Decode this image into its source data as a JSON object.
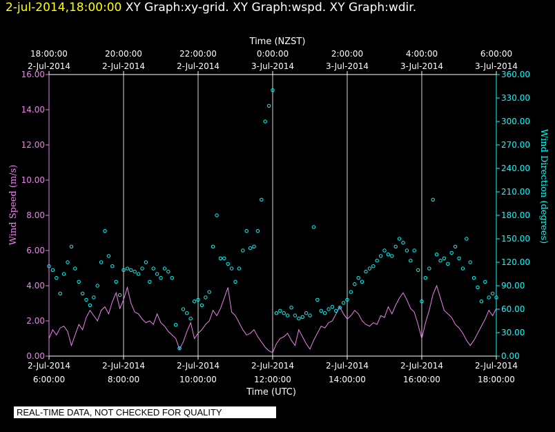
{
  "header": {
    "timestamp": "2-jul-2014,18:00:00",
    "graphs": "XY Graph:xy-grid.  XY Graph:wspd.  XY Graph:wdir."
  },
  "footer": {
    "note": "REAL-TIME DATA, NOT CHECKED FOR QUALITY"
  },
  "colors": {
    "background": "#000000",
    "axes": "#ffffff",
    "grid": "#ffffff",
    "wind_speed": "#ee82ee",
    "wind_direction": "#00ffff",
    "timestamp": "#ffff00"
  },
  "chart_data": {
    "type": "line+scatter",
    "x_axis_bottom": {
      "label": "Time (UTC)",
      "range_hours": [
        6,
        18
      ],
      "ticks": [
        {
          "hour": 6,
          "date": "2-Jul-2014",
          "time": "6:00:00"
        },
        {
          "hour": 8,
          "date": "2-Jul-2014",
          "time": "8:00:00"
        },
        {
          "hour": 10,
          "date": "2-Jul-2014",
          "time": "10:00:00"
        },
        {
          "hour": 12,
          "date": "2-Jul-2014",
          "time": "12:00:00"
        },
        {
          "hour": 14,
          "date": "2-Jul-2014",
          "time": "14:00:00"
        },
        {
          "hour": 16,
          "date": "2-Jul-2014",
          "time": "16:00:00"
        },
        {
          "hour": 18,
          "date": "2-Jul-2014",
          "time": "18:00:00"
        }
      ]
    },
    "x_axis_top": {
      "label": "Time (NZST)",
      "ticks": [
        {
          "hour": 6,
          "time": "18:00:00",
          "date": "2-Jul-2014"
        },
        {
          "hour": 8,
          "time": "20:00:00",
          "date": "2-Jul-2014"
        },
        {
          "hour": 10,
          "time": "22:00:00",
          "date": "2-Jul-2014"
        },
        {
          "hour": 12,
          "time": "0:00:00",
          "date": "3-Jul-2014"
        },
        {
          "hour": 14,
          "time": "2:00:00",
          "date": "3-Jul-2014"
        },
        {
          "hour": 16,
          "time": "4:00:00",
          "date": "3-Jul-2014"
        },
        {
          "hour": 18,
          "time": "6:00:00",
          "date": "3-Jul-2014"
        }
      ]
    },
    "y_left": {
      "label": "Wind Speed (m/s)",
      "range": [
        0,
        16
      ],
      "ticks": [
        {
          "value": 0,
          "label": "0.00"
        },
        {
          "value": 2,
          "label": "2.00"
        },
        {
          "value": 4,
          "label": "4.00"
        },
        {
          "value": 6,
          "label": "6.00"
        },
        {
          "value": 8,
          "label": "8.00"
        },
        {
          "value": 10,
          "label": "10.00"
        },
        {
          "value": 12,
          "label": "12.00"
        },
        {
          "value": 14,
          "label": "14.00"
        },
        {
          "value": 16,
          "label": "16.00"
        }
      ]
    },
    "y_right": {
      "label": "Wind Direction (degrees)",
      "range": [
        0,
        360
      ],
      "ticks": [
        {
          "value": 0,
          "label": "0.00"
        },
        {
          "value": 30,
          "label": "30.00"
        },
        {
          "value": 60,
          "label": "60.00"
        },
        {
          "value": 90,
          "label": "90.00"
        },
        {
          "value": 120,
          "label": "120.00"
        },
        {
          "value": 150,
          "label": "150.00"
        },
        {
          "value": 180,
          "label": "180.00"
        },
        {
          "value": 210,
          "label": "210.00"
        },
        {
          "value": 240,
          "label": "240.00"
        },
        {
          "value": 270,
          "label": "270.00"
        },
        {
          "value": 300,
          "label": "300.00"
        },
        {
          "value": 330,
          "label": "330.00"
        },
        {
          "value": 360,
          "label": "360.00"
        }
      ]
    },
    "series": [
      {
        "name": "wspd",
        "style": "line",
        "axis": "left",
        "points": [
          [
            6.0,
            1.0
          ],
          [
            6.1,
            1.5
          ],
          [
            6.2,
            1.2
          ],
          [
            6.3,
            1.6
          ],
          [
            6.4,
            1.7
          ],
          [
            6.5,
            1.4
          ],
          [
            6.6,
            0.6
          ],
          [
            6.7,
            1.2
          ],
          [
            6.8,
            1.8
          ],
          [
            6.9,
            1.5
          ],
          [
            7.0,
            2.2
          ],
          [
            7.1,
            2.6
          ],
          [
            7.2,
            2.3
          ],
          [
            7.3,
            2.0
          ],
          [
            7.4,
            2.6
          ],
          [
            7.5,
            2.8
          ],
          [
            7.6,
            2.4
          ],
          [
            7.7,
            3.1
          ],
          [
            7.8,
            3.6
          ],
          [
            7.9,
            2.7
          ],
          [
            8.0,
            3.2
          ],
          [
            8.1,
            3.9
          ],
          [
            8.2,
            3.0
          ],
          [
            8.3,
            2.5
          ],
          [
            8.4,
            2.4
          ],
          [
            8.5,
            2.1
          ],
          [
            8.6,
            1.9
          ],
          [
            8.7,
            2.0
          ],
          [
            8.8,
            1.8
          ],
          [
            8.9,
            2.4
          ],
          [
            9.0,
            1.9
          ],
          [
            9.1,
            1.7
          ],
          [
            9.2,
            1.4
          ],
          [
            9.3,
            1.2
          ],
          [
            9.4,
            1.0
          ],
          [
            9.5,
            0.4
          ],
          [
            9.6,
            0.8
          ],
          [
            9.7,
            1.4
          ],
          [
            9.8,
            1.9
          ],
          [
            9.9,
            1.0
          ],
          [
            10.0,
            1.3
          ],
          [
            10.1,
            1.5
          ],
          [
            10.2,
            1.8
          ],
          [
            10.3,
            2.0
          ],
          [
            10.4,
            2.6
          ],
          [
            10.5,
            2.3
          ],
          [
            10.6,
            2.7
          ],
          [
            10.7,
            3.3
          ],
          [
            10.8,
            3.9
          ],
          [
            10.9,
            2.5
          ],
          [
            11.0,
            2.3
          ],
          [
            11.1,
            1.9
          ],
          [
            11.2,
            1.5
          ],
          [
            11.3,
            1.2
          ],
          [
            11.4,
            1.3
          ],
          [
            11.5,
            1.5
          ],
          [
            11.6,
            1.1
          ],
          [
            11.7,
            0.8
          ],
          [
            11.8,
            0.5
          ],
          [
            11.9,
            0.3
          ],
          [
            12.0,
            0.2
          ],
          [
            12.1,
            0.7
          ],
          [
            12.2,
            1.0
          ],
          [
            12.3,
            1.1
          ],
          [
            12.4,
            1.3
          ],
          [
            12.5,
            0.9
          ],
          [
            12.6,
            0.6
          ],
          [
            12.7,
            1.5
          ],
          [
            12.8,
            1.1
          ],
          [
            12.9,
            0.7
          ],
          [
            13.0,
            0.4
          ],
          [
            13.1,
            0.9
          ],
          [
            13.2,
            1.3
          ],
          [
            13.3,
            1.7
          ],
          [
            13.4,
            1.6
          ],
          [
            13.5,
            1.9
          ],
          [
            13.6,
            2.0
          ],
          [
            13.7,
            2.4
          ],
          [
            13.8,
            2.8
          ],
          [
            13.9,
            2.4
          ],
          [
            14.0,
            2.1
          ],
          [
            14.1,
            2.3
          ],
          [
            14.2,
            2.6
          ],
          [
            14.3,
            2.4
          ],
          [
            14.4,
            2.0
          ],
          [
            14.5,
            1.8
          ],
          [
            14.6,
            1.7
          ],
          [
            14.7,
            1.9
          ],
          [
            14.8,
            1.8
          ],
          [
            14.9,
            2.3
          ],
          [
            15.0,
            2.2
          ],
          [
            15.1,
            2.8
          ],
          [
            15.2,
            2.4
          ],
          [
            15.3,
            2.9
          ],
          [
            15.4,
            3.3
          ],
          [
            15.5,
            3.6
          ],
          [
            15.6,
            3.2
          ],
          [
            15.7,
            2.7
          ],
          [
            15.8,
            2.5
          ],
          [
            15.9,
            1.8
          ],
          [
            16.0,
            1.0
          ],
          [
            16.1,
            1.9
          ],
          [
            16.2,
            2.6
          ],
          [
            16.3,
            3.5
          ],
          [
            16.4,
            4.0
          ],
          [
            16.5,
            3.3
          ],
          [
            16.6,
            2.6
          ],
          [
            16.7,
            2.4
          ],
          [
            16.8,
            2.2
          ],
          [
            16.9,
            1.8
          ],
          [
            17.0,
            1.6
          ],
          [
            17.1,
            1.3
          ],
          [
            17.2,
            0.9
          ],
          [
            17.3,
            0.6
          ],
          [
            17.4,
            0.9
          ],
          [
            17.5,
            1.3
          ],
          [
            17.6,
            1.7
          ],
          [
            17.7,
            2.1
          ],
          [
            17.8,
            2.6
          ],
          [
            17.9,
            2.3
          ],
          [
            18.0,
            2.7
          ]
        ]
      },
      {
        "name": "wdir",
        "style": "scatter",
        "axis": "right",
        "points": [
          [
            6.0,
            115
          ],
          [
            6.1,
            110
          ],
          [
            6.2,
            100
          ],
          [
            6.3,
            80
          ],
          [
            6.4,
            105
          ],
          [
            6.5,
            120
          ],
          [
            6.6,
            140
          ],
          [
            6.7,
            112
          ],
          [
            6.8,
            95
          ],
          [
            6.9,
            80
          ],
          [
            7.0,
            72
          ],
          [
            7.1,
            65
          ],
          [
            7.2,
            75
          ],
          [
            7.3,
            90
          ],
          [
            7.4,
            120
          ],
          [
            7.5,
            160
          ],
          [
            7.6,
            128
          ],
          [
            7.7,
            115
          ],
          [
            7.8,
            95
          ],
          [
            7.9,
            78
          ],
          [
            8.0,
            110
          ],
          [
            8.1,
            112
          ],
          [
            8.2,
            110
          ],
          [
            8.3,
            108
          ],
          [
            8.4,
            105
          ],
          [
            8.5,
            112
          ],
          [
            8.6,
            120
          ],
          [
            8.7,
            95
          ],
          [
            8.8,
            112
          ],
          [
            8.9,
            105
          ],
          [
            9.0,
            100
          ],
          [
            9.1,
            112
          ],
          [
            9.2,
            108
          ],
          [
            9.3,
            100
          ],
          [
            9.4,
            40
          ],
          [
            9.5,
            10
          ],
          [
            9.6,
            60
          ],
          [
            9.7,
            55
          ],
          [
            9.8,
            48
          ],
          [
            9.9,
            70
          ],
          [
            10.0,
            72
          ],
          [
            10.1,
            65
          ],
          [
            10.2,
            75
          ],
          [
            10.3,
            82
          ],
          [
            10.4,
            140
          ],
          [
            10.5,
            180
          ],
          [
            10.6,
            125
          ],
          [
            10.7,
            125
          ],
          [
            10.8,
            118
          ],
          [
            10.9,
            112
          ],
          [
            11.0,
            95
          ],
          [
            11.1,
            112
          ],
          [
            11.2,
            135
          ],
          [
            11.3,
            160
          ],
          [
            11.4,
            138
          ],
          [
            11.5,
            140
          ],
          [
            11.6,
            160
          ],
          [
            11.7,
            200
          ],
          [
            11.8,
            300
          ],
          [
            11.9,
            320
          ],
          [
            12.0,
            340
          ],
          [
            12.1,
            55
          ],
          [
            12.2,
            58
          ],
          [
            12.3,
            55
          ],
          [
            12.4,
            52
          ],
          [
            12.5,
            62
          ],
          [
            12.6,
            52
          ],
          [
            12.7,
            48
          ],
          [
            12.8,
            50
          ],
          [
            12.9,
            55
          ],
          [
            13.0,
            52
          ],
          [
            13.1,
            165
          ],
          [
            13.2,
            72
          ],
          [
            13.3,
            58
          ],
          [
            13.4,
            55
          ],
          [
            13.5,
            60
          ],
          [
            13.6,
            63
          ],
          [
            13.7,
            58
          ],
          [
            13.8,
            62
          ],
          [
            13.9,
            68
          ],
          [
            14.0,
            72
          ],
          [
            14.1,
            82
          ],
          [
            14.2,
            92
          ],
          [
            14.3,
            100
          ],
          [
            14.4,
            95
          ],
          [
            14.5,
            108
          ],
          [
            14.6,
            112
          ],
          [
            14.7,
            115
          ],
          [
            14.8,
            122
          ],
          [
            14.9,
            128
          ],
          [
            15.0,
            135
          ],
          [
            15.1,
            130
          ],
          [
            15.2,
            128
          ],
          [
            15.3,
            140
          ],
          [
            15.4,
            150
          ],
          [
            15.5,
            145
          ],
          [
            15.6,
            135
          ],
          [
            15.7,
            122
          ],
          [
            15.8,
            135
          ],
          [
            15.9,
            110
          ],
          [
            16.0,
            70
          ],
          [
            16.1,
            100
          ],
          [
            16.2,
            112
          ],
          [
            16.3,
            200
          ],
          [
            16.4,
            130
          ],
          [
            16.5,
            122
          ],
          [
            16.6,
            125
          ],
          [
            16.7,
            118
          ],
          [
            16.8,
            132
          ],
          [
            16.9,
            140
          ],
          [
            17.0,
            125
          ],
          [
            17.1,
            112
          ],
          [
            17.2,
            150
          ],
          [
            17.3,
            120
          ],
          [
            17.4,
            100
          ],
          [
            17.5,
            88
          ],
          [
            17.6,
            70
          ],
          [
            17.7,
            95
          ],
          [
            17.8,
            75
          ],
          [
            17.9,
            80
          ],
          [
            18.0,
            75
          ]
        ]
      }
    ]
  }
}
